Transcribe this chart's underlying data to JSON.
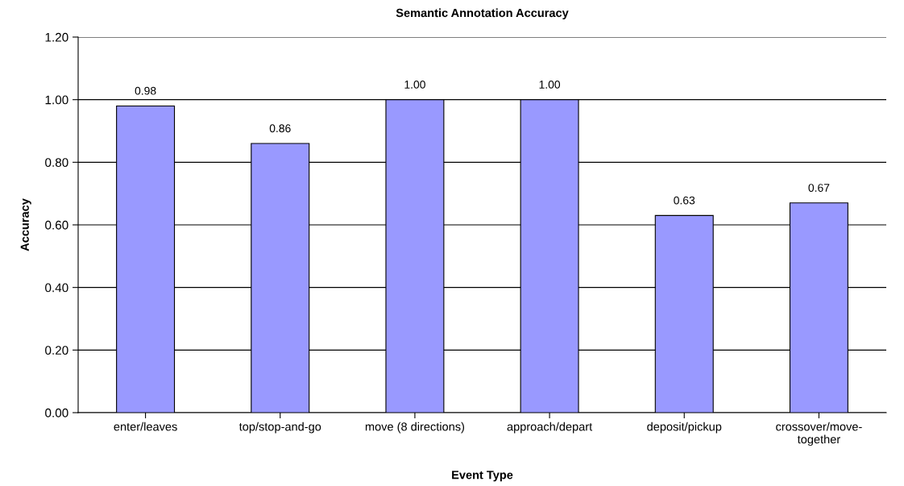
{
  "chart_data": {
    "type": "bar",
    "title": "Semantic Annotation Accuracy",
    "xlabel": "Event Type",
    "ylabel": "Accuracy",
    "categories": [
      "enter/leaves",
      "top/stop-and-go",
      "move (8 directions)",
      "approach/depart",
      "deposit/pickup",
      "crossover/move-\ntogether"
    ],
    "values": [
      0.98,
      0.86,
      1.0,
      1.0,
      0.63,
      0.67
    ],
    "value_labels": [
      "0.98",
      "0.86",
      "1.00",
      "1.00",
      "0.63",
      "0.67"
    ],
    "color": "#9999ff",
    "ylim": [
      0,
      1.2
    ],
    "yticks": [
      {
        "value": 0,
        "label": "0.00"
      },
      {
        "value": 0.2,
        "label": "0.20"
      },
      {
        "value": 0.4,
        "label": "0.40"
      },
      {
        "value": 0.6,
        "label": "0.60"
      },
      {
        "value": 0.8,
        "label": "0.80"
      },
      {
        "value": 1.0,
        "label": "1.00"
      },
      {
        "value": 1.2,
        "label": "1.20"
      }
    ],
    "grid": "y",
    "legend": false
  }
}
